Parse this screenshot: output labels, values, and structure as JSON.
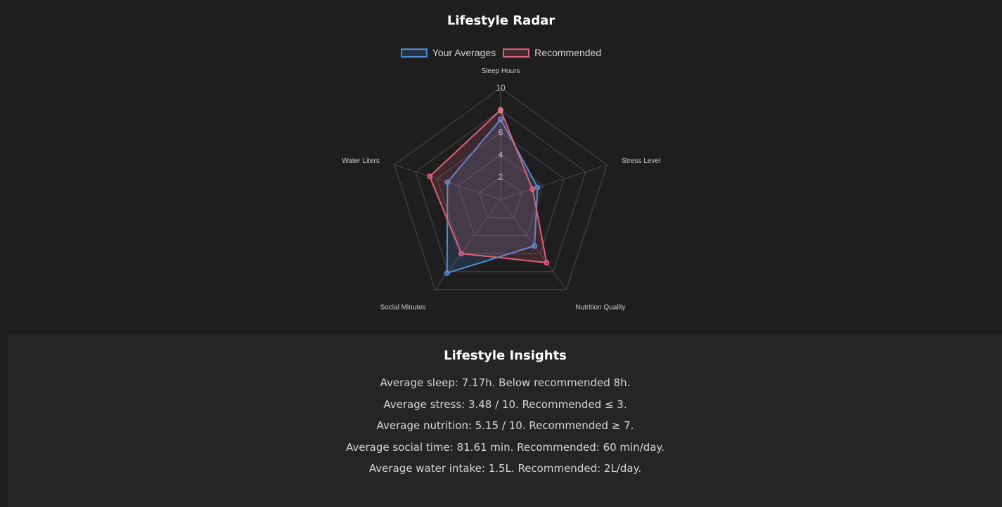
{
  "chart_data": {
    "type": "radar",
    "title": "Lifestyle Radar",
    "axes": [
      "Sleep Hours",
      "Stress Level",
      "Nutrition Quality",
      "Social Minutes",
      "Water Liters"
    ],
    "range": [
      0,
      10
    ],
    "ticks": [
      2,
      4,
      6,
      8,
      10
    ],
    "gridlines": true,
    "legend_position": "top",
    "series": [
      {
        "name": "Your Averages",
        "values": [
          7.17,
          3.48,
          5.15,
          8.16,
          5.0
        ],
        "color": "#4a90d9"
      },
      {
        "name": "Recommended",
        "values": [
          8,
          3,
          7,
          6,
          6.67
        ],
        "color": "#e0607a"
      }
    ]
  },
  "insights": {
    "title": "Lifestyle Insights",
    "lines": [
      "Average sleep: 7.17h. Below recommended 8h.",
      "Average stress: 3.48 / 10. Recommended ≤ 3.",
      "Average nutrition: 5.15 / 10. Recommended ≥ 7.",
      "Average social time: 81.61 min. Recommended: 60 min/day.",
      "Average water intake: 1.5L. Recommended: 2L/day."
    ]
  }
}
